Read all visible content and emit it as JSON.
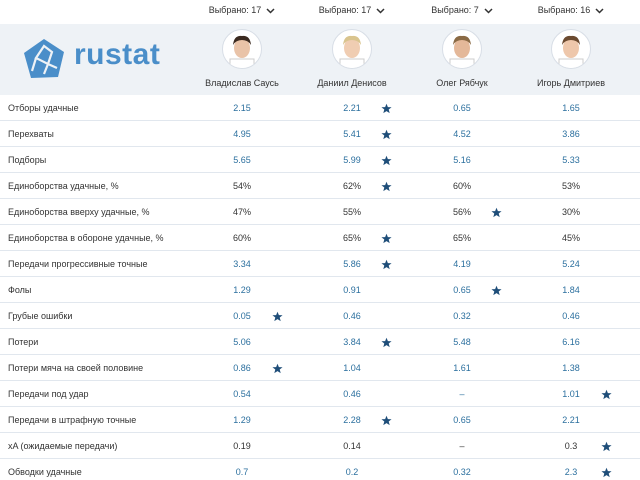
{
  "header": {
    "logo": "rustat",
    "players": [
      {
        "selected": "Выбрано: 17",
        "name": "Владислав Саусь"
      },
      {
        "selected": "Выбрано: 17",
        "name": "Даниил Денисов"
      },
      {
        "selected": "Выбрано: 7",
        "name": "Олег Рябчук"
      },
      {
        "selected": "Выбрано: 16",
        "name": "Игорь Дмитриев"
      }
    ]
  },
  "table": {
    "star_color": "#1f4e79",
    "rows": [
      {
        "label": "Отборы удачные",
        "color": "#2b6f9e",
        "cells": [
          "2.15",
          "2.21",
          "0.65",
          "1.65"
        ],
        "best": [
          false,
          true,
          false,
          false
        ]
      },
      {
        "label": "Перехваты",
        "color": "#2b6f9e",
        "cells": [
          "4.95",
          "5.41",
          "4.52",
          "3.86"
        ],
        "best": [
          false,
          true,
          false,
          false
        ]
      },
      {
        "label": "Подборы",
        "color": "#2b6f9e",
        "cells": [
          "5.65",
          "5.99",
          "5.16",
          "5.33"
        ],
        "best": [
          false,
          true,
          false,
          false
        ]
      },
      {
        "label": "Единоборства удачные, %",
        "color": "#333333",
        "cells": [
          "54%",
          "62%",
          "60%",
          "53%"
        ],
        "best": [
          false,
          true,
          false,
          false
        ]
      },
      {
        "label": "Единоборства вверху удачные, %",
        "color": "#333333",
        "cells": [
          "47%",
          "55%",
          "56%",
          "30%"
        ],
        "best": [
          false,
          false,
          true,
          false
        ]
      },
      {
        "label": "Единоборства в обороне удачные, %",
        "color": "#333333",
        "cells": [
          "60%",
          "65%",
          "65%",
          "45%"
        ],
        "best": [
          false,
          true,
          false,
          false
        ]
      },
      {
        "label": "Передачи прогрессивные точные",
        "color": "#2b6f9e",
        "cells": [
          "3.34",
          "5.86",
          "4.19",
          "5.24"
        ],
        "best": [
          false,
          true,
          false,
          false
        ]
      },
      {
        "label": "Фолы",
        "color": "#2b6f9e",
        "cells": [
          "1.29",
          "0.91",
          "0.65",
          "1.84"
        ],
        "best": [
          false,
          false,
          true,
          false
        ]
      },
      {
        "label": "Грубые ошибки",
        "color": "#2b6f9e",
        "cells": [
          "0.05",
          "0.46",
          "0.32",
          "0.46"
        ],
        "best": [
          true,
          false,
          false,
          false
        ]
      },
      {
        "label": "Потери",
        "color": "#2b6f9e",
        "cells": [
          "5.06",
          "3.84",
          "5.48",
          "6.16"
        ],
        "best": [
          false,
          true,
          false,
          false
        ]
      },
      {
        "label": "Потери мяча на своей половине",
        "color": "#2b6f9e",
        "cells": [
          "0.86",
          "1.04",
          "1.61",
          "1.38"
        ],
        "best": [
          true,
          false,
          false,
          false
        ]
      },
      {
        "label": "Передачи под удар",
        "color": "#2b6f9e",
        "cells": [
          "0.54",
          "0.46",
          "–",
          "1.01"
        ],
        "best": [
          false,
          false,
          false,
          true
        ]
      },
      {
        "label": "Передачи в штрафную точные",
        "color": "#2b6f9e",
        "cells": [
          "1.29",
          "2.28",
          "0.65",
          "2.21"
        ],
        "best": [
          false,
          true,
          false,
          false
        ]
      },
      {
        "label": "xA (ожидаемые передачи)",
        "color": "#333333",
        "cells": [
          "0.19",
          "0.14",
          "–",
          "0.3"
        ],
        "best": [
          false,
          false,
          false,
          true
        ]
      },
      {
        "label": "Обводки удачные",
        "color": "#2b6f9e",
        "cells": [
          "0.7",
          "0.2",
          "0.32",
          "2.3"
        ],
        "best": [
          false,
          false,
          false,
          true
        ]
      }
    ]
  }
}
